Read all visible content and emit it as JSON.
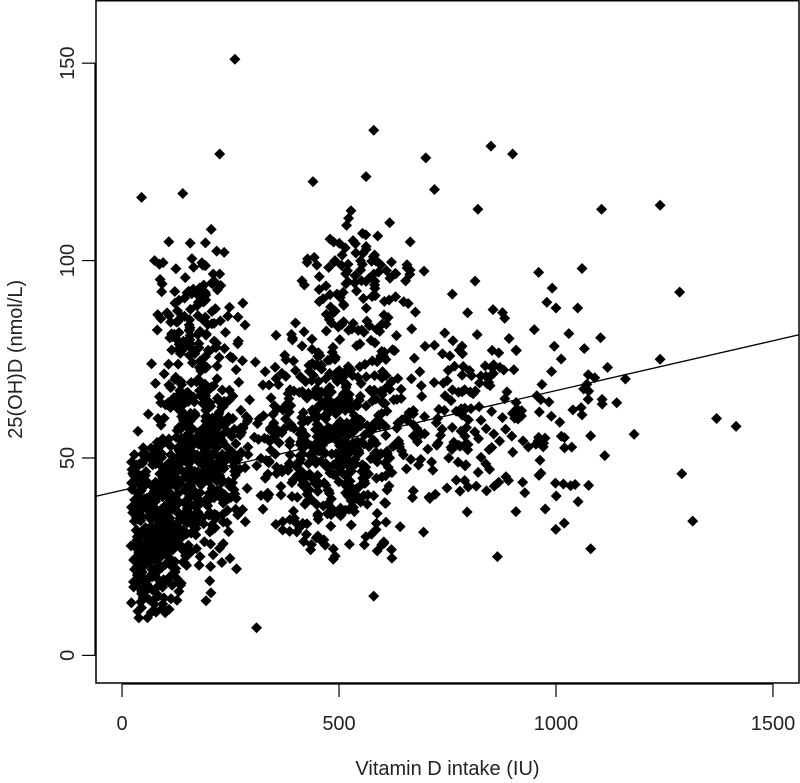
{
  "chart_data": {
    "type": "scatter",
    "title": "",
    "xlabel": "Vitamin D intake (IU)",
    "ylabel": "25(OH)D (nmol/L)",
    "xlim": [
      -60,
      1560
    ],
    "ylim": [
      -7,
      166
    ],
    "xticks": [
      0,
      500,
      1000,
      1500
    ],
    "yticks": [
      0,
      50,
      100,
      150
    ],
    "grid": false,
    "legend": "none",
    "marker": "diamond",
    "marker_color": "#000000",
    "regression_line": {
      "x": [
        -60,
        1560
      ],
      "y": [
        40.3,
        81.2
      ]
    },
    "outliers": [
      {
        "x": 260,
        "y": 151
      },
      {
        "x": 580,
        "y": 133
      },
      {
        "x": 850,
        "y": 129
      },
      {
        "x": 900,
        "y": 127
      },
      {
        "x": 700,
        "y": 126
      },
      {
        "x": 225,
        "y": 127
      },
      {
        "x": 1240,
        "y": 114
      },
      {
        "x": 1105,
        "y": 113
      },
      {
        "x": 1285,
        "y": 92
      },
      {
        "x": 1240,
        "y": 75
      },
      {
        "x": 1370,
        "y": 60
      },
      {
        "x": 1415,
        "y": 58
      },
      {
        "x": 1290,
        "y": 46
      },
      {
        "x": 1315,
        "y": 34
      },
      {
        "x": 1080,
        "y": 27
      },
      {
        "x": 865,
        "y": 25
      },
      {
        "x": 580,
        "y": 15
      },
      {
        "x": 310,
        "y": 7
      },
      {
        "x": 1180,
        "y": 56
      },
      {
        "x": 1140,
        "y": 64
      },
      {
        "x": 1060,
        "y": 98
      },
      {
        "x": 960,
        "y": 97
      },
      {
        "x": 1050,
        "y": 88
      },
      {
        "x": 1000,
        "y": 88
      },
      {
        "x": 140,
        "y": 117
      },
      {
        "x": 45,
        "y": 116
      },
      {
        "x": 440,
        "y": 120
      },
      {
        "x": 820,
        "y": 113
      },
      {
        "x": 720,
        "y": 118
      },
      {
        "x": 1160,
        "y": 70
      }
    ],
    "clusters": [
      {
        "x_center": 80,
        "x_spread": 55,
        "y_center": 32,
        "y_spread": 15,
        "count": 380
      },
      {
        "x_center": 180,
        "x_spread": 75,
        "y_center": 50,
        "y_spread": 18,
        "count": 430
      },
      {
        "x_center": 170,
        "x_spread": 65,
        "y_center": 88,
        "y_spread": 12,
        "count": 110
      },
      {
        "x_center": 500,
        "x_spread": 130,
        "y_center": 55,
        "y_spread": 19,
        "count": 560
      },
      {
        "x_center": 550,
        "x_spread": 90,
        "y_center": 94,
        "y_spread": 13,
        "count": 110
      },
      {
        "x_center": 800,
        "x_spread": 120,
        "y_center": 62,
        "y_spread": 18,
        "count": 150
      },
      {
        "x_center": 1030,
        "x_spread": 90,
        "y_center": 62,
        "y_spread": 17,
        "count": 45
      }
    ]
  }
}
